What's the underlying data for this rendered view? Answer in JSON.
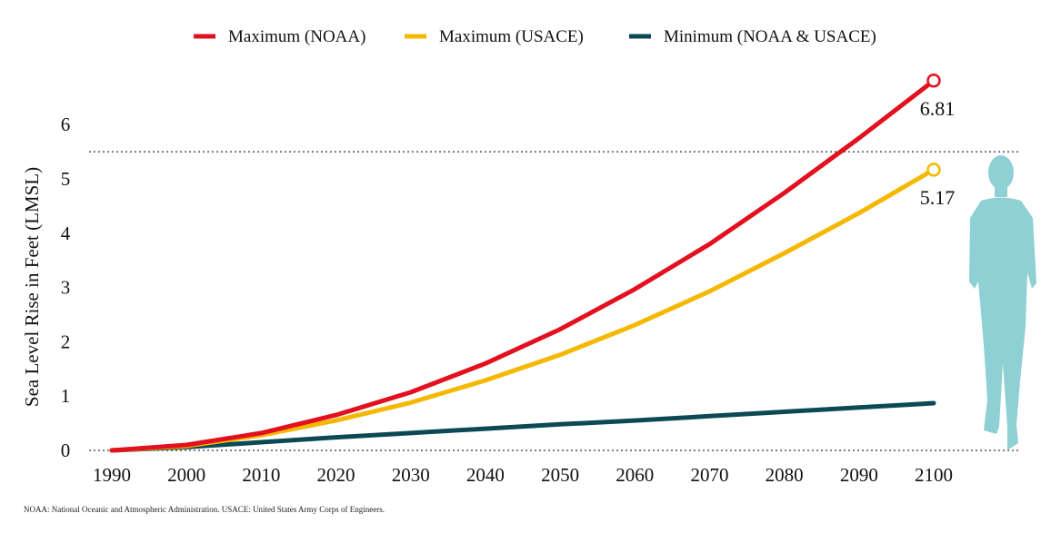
{
  "chart_data": {
    "type": "line",
    "ylabel": "Sea Level Rise in Feet (LMSL)",
    "xlabel": "",
    "x": [
      1990,
      2000,
      2010,
      2020,
      2030,
      2040,
      2050,
      2060,
      2070,
      2080,
      2090,
      2100
    ],
    "x_tick_labels": [
      "1990",
      "2000",
      "2010",
      "2020",
      "2030",
      "2040",
      "2050",
      "2060",
      "2070",
      "2080",
      "2090",
      "2100"
    ],
    "y_ticks": [
      0,
      1,
      2,
      3,
      4,
      5,
      6
    ],
    "y_tick_labels": [
      "0",
      "1",
      "2",
      "3",
      "4",
      "5",
      "6"
    ],
    "ylim": [
      0,
      6.9
    ],
    "grid": false,
    "reference_line_y": 5.5,
    "legend_position": "top",
    "series": [
      {
        "name": "Maximum (NOAA)",
        "color": "#e3101f",
        "values": [
          0,
          0.1,
          0.32,
          0.65,
          1.07,
          1.6,
          2.23,
          2.97,
          3.8,
          4.74,
          5.75,
          6.81
        ],
        "end_label": "6.81"
      },
      {
        "name": "Maximum (USACE)",
        "color": "#f5b800",
        "values": [
          0,
          0.08,
          0.28,
          0.55,
          0.88,
          1.29,
          1.76,
          2.31,
          2.93,
          3.63,
          4.37,
          5.17
        ],
        "end_label": "5.17"
      },
      {
        "name": "Minimum (NOAA & USACE)",
        "color": "#0b4a55",
        "values": [
          0,
          0.06,
          0.15,
          0.24,
          0.32,
          0.4,
          0.48,
          0.55,
          0.63,
          0.71,
          0.79,
          0.87
        ],
        "end_label": ""
      }
    ],
    "silhouette_color": "#8fd0d4"
  },
  "footnote": "NOAA: National Oceanic and Atmospheric Administration. USACE: United States Army Corps of Engineers."
}
